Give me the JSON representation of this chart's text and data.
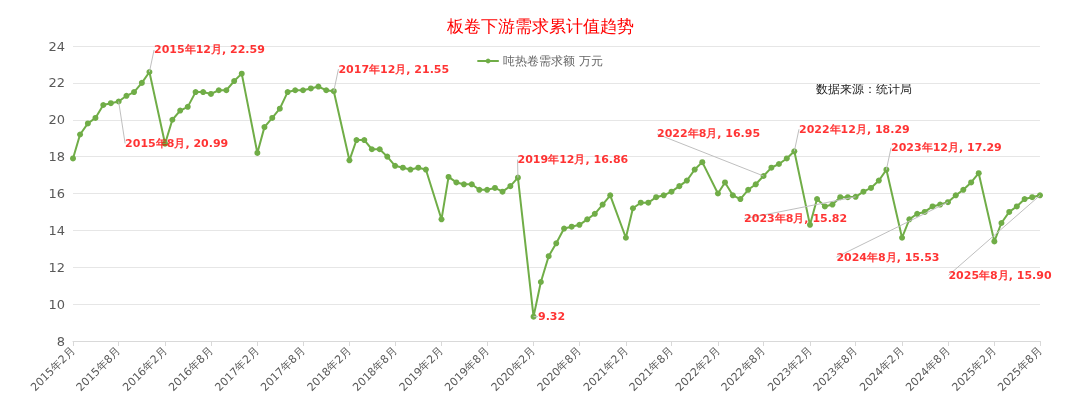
{
  "chart_data": {
    "type": "line",
    "title": "板卷下游需求累计值趋势",
    "x": [
      "2015-02",
      "2015-03",
      "2015-04",
      "2015-05",
      "2015-06",
      "2015-07",
      "2015-08",
      "2015-09",
      "2015-10",
      "2015-11",
      "2015-12",
      "2016-02",
      "2016-03",
      "2016-04",
      "2016-05",
      "2016-06",
      "2016-07",
      "2016-08",
      "2016-09",
      "2016-10",
      "2016-11",
      "2016-12",
      "2017-02",
      "2017-03",
      "2017-04",
      "2017-05",
      "2017-06",
      "2017-07",
      "2017-08",
      "2017-09",
      "2017-10",
      "2017-11",
      "2017-12",
      "2018-02",
      "2018-03",
      "2018-04",
      "2018-05",
      "2018-06",
      "2018-07",
      "2018-08",
      "2018-09",
      "2018-10",
      "2018-11",
      "2018-12",
      "2019-02",
      "2019-03",
      "2019-04",
      "2019-05",
      "2019-06",
      "2019-07",
      "2019-08",
      "2019-09",
      "2019-10",
      "2019-11",
      "2019-12",
      "2020-02",
      "2020-03",
      "2020-04",
      "2020-05",
      "2020-06",
      "2020-07",
      "2020-08",
      "2020-09",
      "2020-10",
      "2020-11",
      "2020-12",
      "2021-02",
      "2021-03",
      "2021-04",
      "2021-05",
      "2021-06",
      "2021-07",
      "2021-08",
      "2021-09",
      "2021-10",
      "2021-11",
      "2021-12",
      "2022-02",
      "2022-03",
      "2022-04",
      "2022-05",
      "2022-06",
      "2022-07",
      "2022-08",
      "2022-09",
      "2022-10",
      "2022-11",
      "2022-12",
      "2023-02",
      "2023-03",
      "2023-04",
      "2023-05",
      "2023-06",
      "2023-07",
      "2023-08",
      "2023-09",
      "2023-10",
      "2023-11",
      "2023-12",
      "2024-02",
      "2024-03",
      "2024-04",
      "2024-05",
      "2024-06",
      "2024-07",
      "2024-08",
      "2024-09",
      "2024-10",
      "2024-11",
      "2024-12",
      "2025-02",
      "2025-03",
      "2025-04",
      "2025-05",
      "2025-06",
      "2025-07",
      "2025-08"
    ],
    "series": [
      {
        "name": "吨热卷需求额 万元",
        "color": "#70ad47",
        "values": [
          17.9,
          19.2,
          19.8,
          20.1,
          20.8,
          20.9,
          20.99,
          21.3,
          21.5,
          22.0,
          22.59,
          18.7,
          20.0,
          20.5,
          20.7,
          21.5,
          21.5,
          21.4,
          21.6,
          21.6,
          22.1,
          22.5,
          18.2,
          19.6,
          20.1,
          20.6,
          21.5,
          21.6,
          21.6,
          21.7,
          21.8,
          21.6,
          21.55,
          17.8,
          18.9,
          18.9,
          18.4,
          18.4,
          18.0,
          17.5,
          17.4,
          17.3,
          17.4,
          17.3,
          14.6,
          16.9,
          16.6,
          16.5,
          16.5,
          16.2,
          16.2,
          16.3,
          16.1,
          16.4,
          16.86,
          9.32,
          11.2,
          12.6,
          13.3,
          14.1,
          14.2,
          14.3,
          14.6,
          14.9,
          15.4,
          15.9,
          13.6,
          15.2,
          15.5,
          15.5,
          15.8,
          15.9,
          16.1,
          16.4,
          16.7,
          17.3,
          17.7,
          16.0,
          16.6,
          15.9,
          15.7,
          16.2,
          16.5,
          16.95,
          17.4,
          17.6,
          17.9,
          18.29,
          14.3,
          15.7,
          15.3,
          15.4,
          15.8,
          15.8,
          15.82,
          16.1,
          16.3,
          16.7,
          17.29,
          13.6,
          14.6,
          14.9,
          15.0,
          15.3,
          15.4,
          15.53,
          15.9,
          16.2,
          16.6,
          17.1,
          13.4,
          14.4,
          15.0,
          15.3,
          15.7,
          15.8,
          15.9
        ]
      }
    ],
    "xlim": [
      "2015-02",
      "2025-08"
    ],
    "xticks": [
      {
        "value": "2015-02",
        "label": "2015年2月"
      },
      {
        "value": "2015-08",
        "label": "2015年8月"
      },
      {
        "value": "2016-02",
        "label": "2016年2月"
      },
      {
        "value": "2016-08",
        "label": "2016年8月"
      },
      {
        "value": "2017-02",
        "label": "2017年2月"
      },
      {
        "value": "2017-08",
        "label": "2017年8月"
      },
      {
        "value": "2018-02",
        "label": "2018年2月"
      },
      {
        "value": "2018-08",
        "label": "2018年8月"
      },
      {
        "value": "2019-02",
        "label": "2019年2月"
      },
      {
        "value": "2019-08",
        "label": "2019年8月"
      },
      {
        "value": "2020-02",
        "label": "2020年2月"
      },
      {
        "value": "2020-08",
        "label": "2020年8月"
      },
      {
        "value": "2021-02",
        "label": "2021年2月"
      },
      {
        "value": "2021-08",
        "label": "2021年8月"
      },
      {
        "value": "2022-02",
        "label": "2022年2月"
      },
      {
        "value": "2022-08",
        "label": "2022年8月"
      },
      {
        "value": "2023-02",
        "label": "2023年2月"
      },
      {
        "value": "2023-08",
        "label": "2023年8月"
      },
      {
        "value": "2024-02",
        "label": "2024年2月"
      },
      {
        "value": "2024-08",
        "label": "2024年8月"
      },
      {
        "value": "2025-02",
        "label": "2025年2月"
      },
      {
        "value": "2025-08",
        "label": "2025年8月"
      }
    ],
    "ylim": [
      8,
      24
    ],
    "yticks": [
      8,
      10,
      12,
      14,
      16,
      18,
      20,
      22,
      24
    ],
    "grid": "y",
    "legend": "top",
    "marker": "circle",
    "line_style": "solid",
    "annotations": [
      {
        "text": "2015年12月, 22.59",
        "x": "2015-12",
        "y": 22.59
      },
      {
        "text": "2015年8月, 20.99",
        "x": "2015-08",
        "y": 20.99
      },
      {
        "text": "2017年12月, 21.55",
        "x": "2017-12",
        "y": 21.55
      },
      {
        "text": "2019年12月, 16.86",
        "x": "2019-12",
        "y": 16.86
      },
      {
        "text": "9.32",
        "x": "2020-02",
        "y": 9.32
      },
      {
        "text": "2022年8月, 16.95",
        "x": "2022-08",
        "y": 16.95
      },
      {
        "text": "2022年12月, 18.29",
        "x": "2022-12",
        "y": 18.29
      },
      {
        "text": "2023年8月, 15.82",
        "x": "2023-08",
        "y": 15.82
      },
      {
        "text": "2023年12月, 17.29",
        "x": "2023-12",
        "y": 17.29
      },
      {
        "text": "2024年8月, 15.53",
        "x": "2024-08",
        "y": 15.53
      },
      {
        "text": "2025年8月, 15.90",
        "x": "2025-08",
        "y": 15.9
      },
      "数据来源：统计局"
    ]
  }
}
